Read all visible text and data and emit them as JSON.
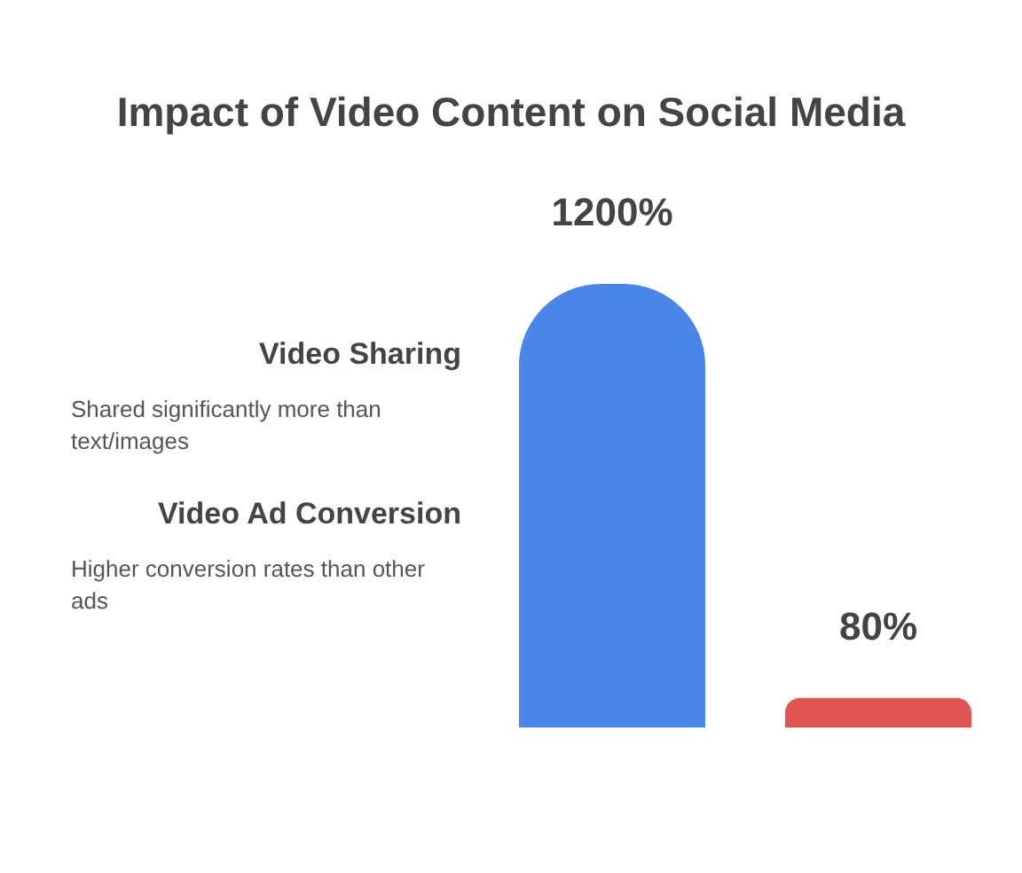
{
  "chart_data": {
    "type": "bar",
    "title": "Impact of Video Content on Social Media",
    "categories": [
      null,
      null
    ],
    "values": [
      1200,
      80
    ],
    "colors": [
      "#4a86e8",
      "#e25452"
    ],
    "value_labels": [
      "1200%",
      "80%"
    ],
    "annotations": [
      "Video Sharing",
      "Shared significantly more than text/images",
      "Video Ad Conversion",
      "Higher conversion rates than other ads"
    ]
  }
}
